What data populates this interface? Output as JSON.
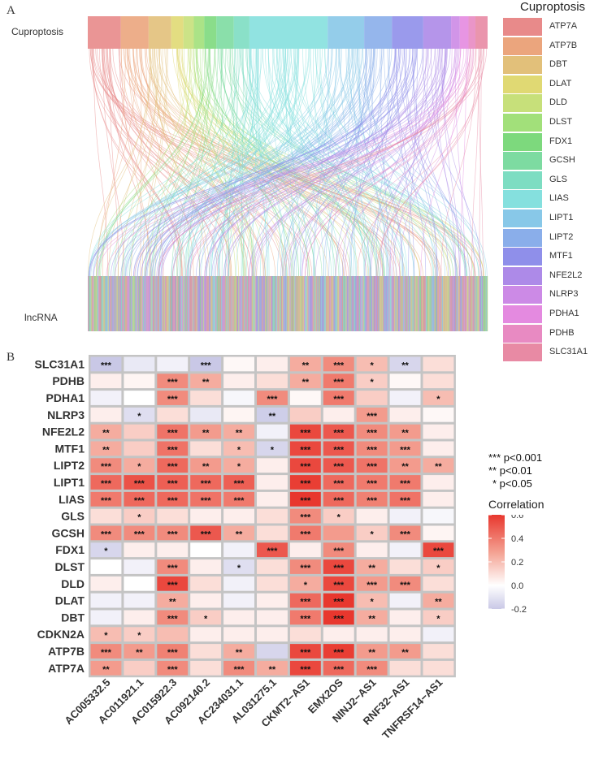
{
  "panel_a": {
    "letter": "A",
    "top_label": "Cuproptosis",
    "bottom_label": "lncRNA",
    "legend_title": "Cuproptosis",
    "legend": [
      {
        "name": "ATP7A",
        "color": "#e88a8a"
      },
      {
        "name": "ATP7B",
        "color": "#eba57d"
      },
      {
        "name": "DBT",
        "color": "#e2c07a"
      },
      {
        "name": "DLAT",
        "color": "#e0d973"
      },
      {
        "name": "DLD",
        "color": "#c7e07a"
      },
      {
        "name": "DLST",
        "color": "#a2e07a"
      },
      {
        "name": "FDX1",
        "color": "#7dd97d"
      },
      {
        "name": "GCSH",
        "color": "#7ddba1"
      },
      {
        "name": "GLS",
        "color": "#7dddc2"
      },
      {
        "name": "LIAS",
        "color": "#85e0de"
      },
      {
        "name": "LIPT1",
        "color": "#88c8e8"
      },
      {
        "name": "LIPT2",
        "color": "#8aaeea"
      },
      {
        "name": "MTF1",
        "color": "#8f8fea"
      },
      {
        "name": "NFE2L2",
        "color": "#ad8ae8"
      },
      {
        "name": "NLRP3",
        "color": "#cc8ae6"
      },
      {
        "name": "PDHA1",
        "color": "#e48ae0"
      },
      {
        "name": "PDHB",
        "color": "#e88ac2"
      },
      {
        "name": "SLC31A1",
        "color": "#e88aa4"
      }
    ]
  },
  "panel_b": {
    "letter": "B",
    "significance_key": [
      "***  p<0.001",
      "**  p<0.01",
      "*  p<0.05"
    ],
    "legend_title": "Correlation",
    "colorbar_ticks": [
      "0.6",
      "0.4",
      "0.2",
      "0.0",
      "-0.2"
    ]
  },
  "chart_data": {
    "type": "heatmap",
    "title": "",
    "rows": [
      "SLC31A1",
      "PDHB",
      "PDHA1",
      "NLRP3",
      "NFE2L2",
      "MTF1",
      "LIPT2",
      "LIPT1",
      "LIAS",
      "GLS",
      "GCSH",
      "FDX1",
      "DLST",
      "DLD",
      "DLAT",
      "DBT",
      "CDKN2A",
      "ATP7B",
      "ATP7A"
    ],
    "columns": [
      "AC005332.5",
      "AC011921.1",
      "AC015922.3",
      "AC092140.2",
      "AC234031.1",
      "AL031275.1",
      "CKMT2−AS1",
      "EMX2OS",
      "NINJ2−AS1",
      "RNF32−AS1",
      "TNFRSF14−AS1"
    ],
    "values": [
      [
        -0.2,
        -0.08,
        -0.05,
        -0.2,
        0.02,
        0.05,
        0.25,
        0.35,
        0.2,
        -0.15,
        0.1
      ],
      [
        0.05,
        0.03,
        0.35,
        0.25,
        0.05,
        0.1,
        0.25,
        0.4,
        0.15,
        0.02,
        0.1
      ],
      [
        -0.05,
        0.0,
        0.35,
        0.1,
        -0.03,
        0.35,
        0.02,
        0.4,
        0.15,
        -0.05,
        0.2
      ],
      [
        0.05,
        -0.12,
        0.1,
        -0.08,
        0.03,
        -0.18,
        0.15,
        0.05,
        0.3,
        0.05,
        0.02
      ],
      [
        0.25,
        0.15,
        0.42,
        0.3,
        0.25,
        -0.05,
        0.55,
        0.5,
        0.35,
        0.3,
        0.05
      ],
      [
        0.25,
        0.15,
        0.42,
        0.1,
        0.2,
        -0.15,
        0.55,
        0.5,
        0.35,
        0.3,
        0.05
      ],
      [
        0.35,
        0.25,
        0.45,
        0.3,
        0.25,
        0.05,
        0.55,
        0.5,
        0.42,
        0.3,
        0.25
      ],
      [
        0.45,
        0.52,
        0.48,
        0.45,
        0.48,
        0.05,
        0.58,
        0.45,
        0.4,
        0.4,
        0.05
      ],
      [
        0.4,
        0.45,
        0.45,
        0.42,
        0.4,
        0.05,
        0.6,
        0.45,
        0.38,
        0.42,
        0.05
      ],
      [
        0.1,
        0.15,
        0.1,
        0.05,
        0.05,
        0.1,
        0.35,
        0.15,
        0.05,
        -0.05,
        -0.03
      ],
      [
        0.35,
        0.35,
        0.35,
        0.5,
        0.25,
        0.1,
        0.4,
        0.3,
        0.15,
        0.35,
        0.03
      ],
      [
        -0.15,
        0.05,
        0.05,
        0.0,
        -0.05,
        0.5,
        0.05,
        0.35,
        0.05,
        -0.05,
        0.55
      ],
      [
        0.0,
        -0.05,
        0.35,
        0.05,
        -0.12,
        0.1,
        0.35,
        0.55,
        0.25,
        0.1,
        0.15
      ],
      [
        0.05,
        0.0,
        0.55,
        0.1,
        -0.05,
        0.1,
        0.25,
        0.55,
        0.3,
        0.35,
        0.1
      ],
      [
        -0.05,
        -0.05,
        0.25,
        0.05,
        -0.05,
        0.05,
        0.45,
        0.65,
        0.2,
        -0.05,
        0.25
      ],
      [
        -0.05,
        0.05,
        0.35,
        0.15,
        0.05,
        0.05,
        0.4,
        0.65,
        0.25,
        0.05,
        0.15
      ],
      [
        0.2,
        0.15,
        0.2,
        0.05,
        0.05,
        0.05,
        0.1,
        0.05,
        0.05,
        0.05,
        -0.05
      ],
      [
        0.35,
        0.3,
        0.38,
        0.1,
        0.25,
        -0.15,
        0.55,
        0.58,
        0.3,
        0.3,
        0.1
      ],
      [
        0.3,
        0.15,
        0.35,
        0.1,
        0.35,
        0.25,
        0.55,
        0.45,
        0.35,
        0.1,
        0.1
      ]
    ],
    "significance": [
      [
        "***",
        "",
        "",
        "***",
        "",
        "",
        "**",
        "***",
        "*",
        "**",
        ""
      ],
      [
        "",
        "",
        "***",
        "**",
        "",
        "",
        "**",
        "***",
        "*",
        "",
        ""
      ],
      [
        "",
        "",
        "***",
        "",
        "",
        "***",
        "",
        "***",
        "",
        "",
        "*"
      ],
      [
        "",
        "*",
        "",
        "",
        "",
        "**",
        "",
        "",
        "***",
        "",
        ""
      ],
      [
        "**",
        "",
        "***",
        "**",
        "**",
        "",
        "***",
        "***",
        "***",
        "**",
        ""
      ],
      [
        "**",
        "",
        "***",
        "",
        "*",
        "*",
        "***",
        "***",
        "***",
        "***",
        ""
      ],
      [
        "***",
        "*",
        "***",
        "**",
        "*",
        "",
        "***",
        "***",
        "***",
        "**",
        "**"
      ],
      [
        "***",
        "***",
        "***",
        "***",
        "***",
        "",
        "***",
        "***",
        "***",
        "***",
        ""
      ],
      [
        "***",
        "***",
        "***",
        "***",
        "***",
        "",
        "***",
        "***",
        "***",
        "***",
        ""
      ],
      [
        "",
        "*",
        "",
        "",
        "",
        "",
        "***",
        "*",
        "",
        "",
        ""
      ],
      [
        "***",
        "***",
        "***",
        "***",
        "**",
        "",
        "***",
        "",
        "*",
        "***",
        ""
      ],
      [
        "*",
        "",
        "",
        "",
        "",
        "***",
        "",
        "***",
        "",
        "",
        "***"
      ],
      [
        "",
        "",
        "***",
        "",
        "*",
        "",
        "***",
        "***",
        "**",
        "",
        "*"
      ],
      [
        "",
        "",
        "***",
        "",
        "",
        "",
        "*",
        "***",
        "***",
        "***",
        ""
      ],
      [
        "",
        "",
        "**",
        "",
        "",
        "",
        "***",
        "***",
        "*",
        "",
        "**"
      ],
      [
        "",
        "",
        "***",
        "*",
        "",
        "",
        "***",
        "***",
        "**",
        "",
        "*"
      ],
      [
        "*",
        "*",
        "",
        "",
        "",
        "",
        "",
        "",
        "",
        "",
        ""
      ],
      [
        "***",
        "**",
        "***",
        "",
        "**",
        "",
        "***",
        "***",
        "**",
        "**",
        ""
      ],
      [
        "**",
        "",
        "***",
        "",
        "***",
        "**",
        "***",
        "***",
        "***",
        "",
        ""
      ]
    ],
    "colorbar_range": [
      -0.2,
      0.6
    ],
    "legend_title": "Correlation"
  }
}
